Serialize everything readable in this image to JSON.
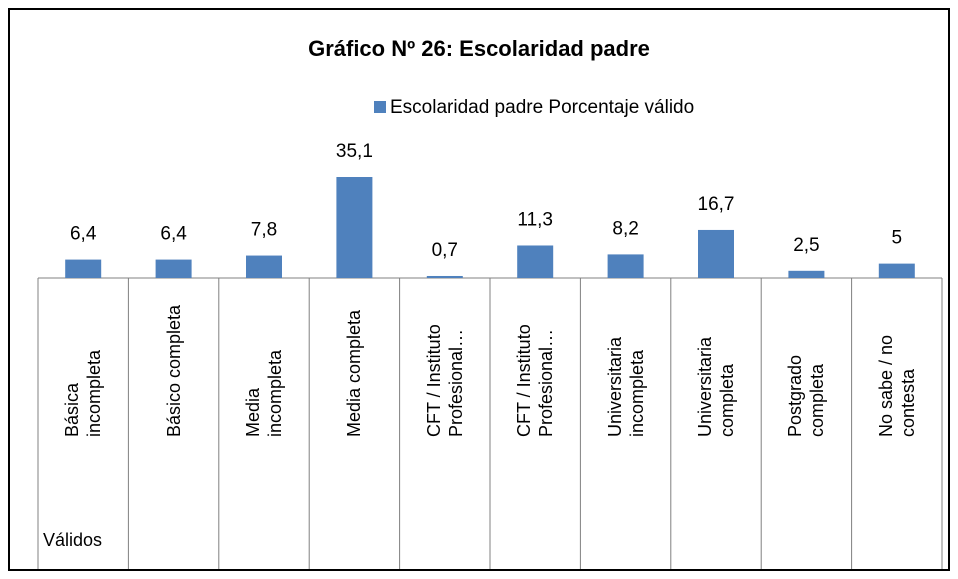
{
  "chart_data": {
    "type": "bar",
    "title": "Gráfico Nº 26: Escolaridad padre",
    "categories": [
      "Básica\nincompleta",
      "Básico completa",
      "Media\nincompleta",
      "Media completa",
      "CFT / Instituto\nProfesional…",
      "CFT / Instituto\nProfesional…",
      "Universitaria\nincompleta",
      "Universitaria\ncompleta",
      "Postgrado\ncompleta",
      "No sabe / no\ncontesta"
    ],
    "group_label": "Válidos",
    "series": [
      {
        "name": "Escolaridad padre Porcentaje válido",
        "color": "#4f81bd",
        "values": [
          6.4,
          6.4,
          7.8,
          35.1,
          0.7,
          11.3,
          8.2,
          16.7,
          2.5,
          5
        ],
        "value_labels": [
          "6,4",
          "6,4",
          "7,8",
          "35,1",
          "0,7",
          "11,3",
          "8,2",
          "16,7",
          "2,5",
          "5"
        ]
      }
    ]
  }
}
